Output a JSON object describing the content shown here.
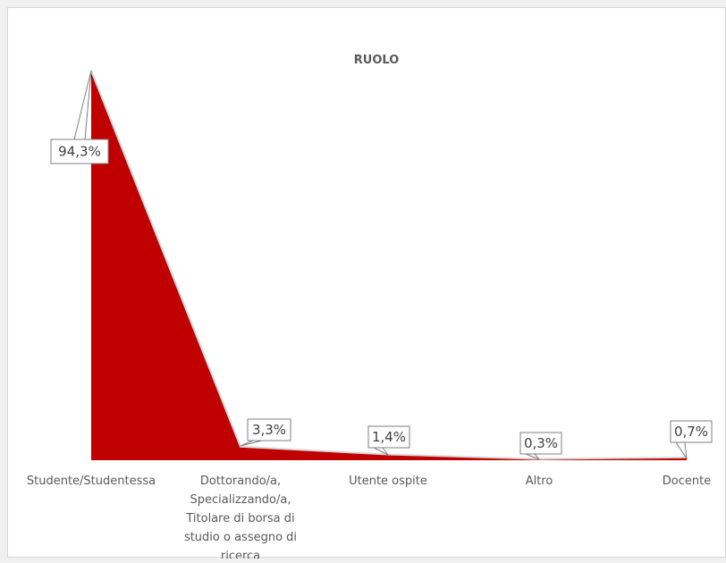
{
  "chart_data": {
    "type": "area",
    "title": "RUOLO",
    "categories": [
      "Studente/Studentessa",
      "Dottorando/a, Specializzando/a, Titolare di borsa di studio o assegno di ricerca",
      "Utente ospite",
      "Altro",
      "Docente"
    ],
    "values": [
      94.3,
      3.3,
      1.4,
      0.3,
      0.7
    ],
    "data_labels": [
      "94,3%",
      "3,3%",
      "1,4%",
      "0,3%",
      "0,7%"
    ],
    "xlabel": "",
    "ylabel": "",
    "ylim": [
      0,
      100
    ],
    "grid": false,
    "legend": "none",
    "colors": {
      "fill": "#c00000",
      "line": "#d9d9d9"
    }
  }
}
